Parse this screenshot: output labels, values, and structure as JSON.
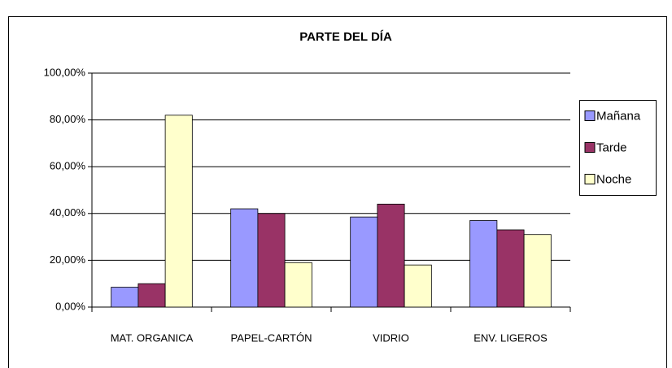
{
  "chart_data": {
    "type": "bar",
    "title": "PARTE DEL DÍA",
    "categories": [
      "MAT. ORGANICA",
      "PAPEL-CARTÓN",
      "VIDRIO",
      "ENV. LIGEROS"
    ],
    "series": [
      {
        "name": "Mañana",
        "color": "#9999ff",
        "values": [
          8.5,
          42,
          38.5,
          37
        ]
      },
      {
        "name": "Tarde",
        "color": "#993366",
        "values": [
          10,
          40,
          44,
          33
        ]
      },
      {
        "name": "Noche",
        "color": "#ffffcc",
        "values": [
          82,
          19,
          18,
          31
        ]
      }
    ],
    "ylim": [
      0,
      100
    ],
    "yticks": [
      {
        "value": 0,
        "label": "0,00%"
      },
      {
        "value": 20,
        "label": "20,00%"
      },
      {
        "value": 40,
        "label": "40,00%"
      },
      {
        "value": 60,
        "label": "60,00%"
      },
      {
        "value": 80,
        "label": "80,00%"
      },
      {
        "value": 100,
        "label": "100,00%"
      }
    ],
    "grid": true,
    "legend": "right"
  }
}
